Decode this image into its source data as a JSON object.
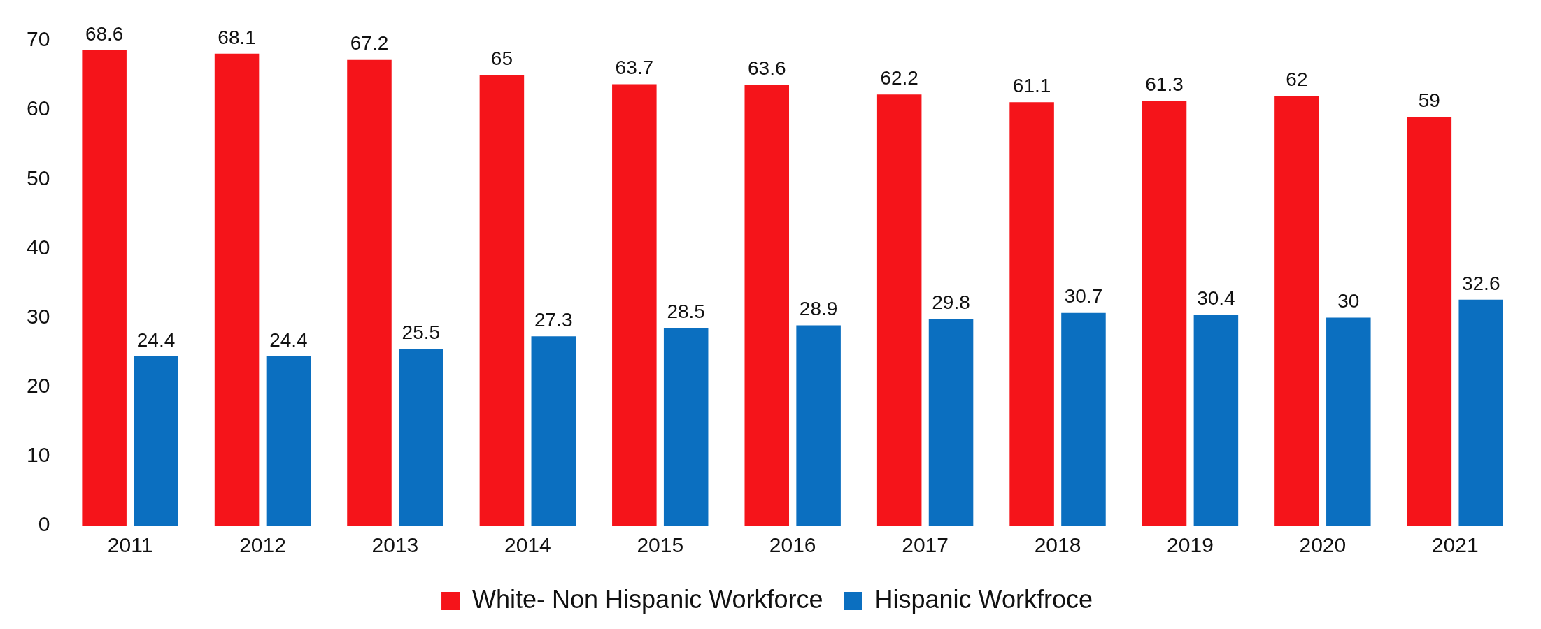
{
  "chart_data": {
    "type": "bar",
    "categories": [
      "2011",
      "2012",
      "2013",
      "2014",
      "2015",
      "2016",
      "2017",
      "2018",
      "2019",
      "2020",
      "2021"
    ],
    "series": [
      {
        "name": "White- Non Hispanic Workforce",
        "color": "#f5141a",
        "values": [
          68.6,
          68.1,
          67.2,
          65,
          63.7,
          63.6,
          62.2,
          61.1,
          61.3,
          62,
          59
        ]
      },
      {
        "name": "Hispanic Workfroce",
        "color": "#0b6fc0",
        "values": [
          24.4,
          24.4,
          25.5,
          27.3,
          28.5,
          28.9,
          29.8,
          30.7,
          30.4,
          30,
          32.6
        ]
      }
    ],
    "ylim": [
      0,
      70
    ],
    "yticks": [
      0,
      10,
      20,
      30,
      40,
      50,
      60,
      70
    ],
    "grid": false,
    "legend": "bottom",
    "data_labels": true
  }
}
